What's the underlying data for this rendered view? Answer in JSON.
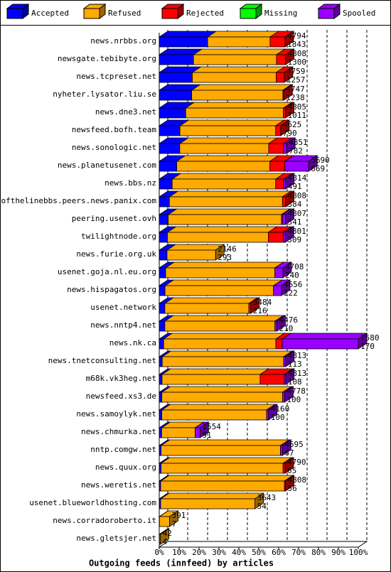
{
  "chart_data": {
    "type": "bar",
    "xlabel": "Outgoing feeds (innfeed) by articles",
    "legend": "top",
    "grid": true,
    "categories": [
      "news.nrbbs.org",
      "newsgate.tebibyte.org",
      "news.tcpreset.net",
      "nyheter.lysator.liu.se",
      "news.dne3.net",
      "newsfeed.bofh.team",
      "news.sonologic.net",
      "news.planetusenet.com",
      "news.bbs.nz",
      "endofthelinebbs.peers.news.panix.com",
      "peering.usenet.ovh",
      "twilightnode.org",
      "news.furie.org.uk",
      "usenet.goja.nl.eu.org",
      "news.hispagatos.org",
      "usenet.network",
      "news.nntp4.net",
      "news.nk.ca",
      "news.tnetconsulting.net",
      "m68k.vk3heg.net",
      "newsfeed.xs3.de",
      "news.samoylyk.net",
      "news.chmurka.net",
      "nntp.comgw.net",
      "news.quux.org",
      "news.weretis.net",
      "usenet.blueworldhosting.com",
      "news.corradoroberto.it",
      "news.gletsjer.net"
    ],
    "series": [
      {
        "name": "Accepted",
        "color": "#0000ff",
        "values": [
          24.3,
          17.2,
          16.6,
          16.3,
          13.3,
          10.4,
          10.3,
          8.8,
          6.5,
          5.1,
          4.5,
          4.1,
          3.9,
          3.2,
          2.9,
          2.8,
          2.8,
          2.2,
          1.5,
          1.4,
          1.3,
          1.3,
          1.2,
          0.9,
          0.9,
          0.7,
          0.7,
          0.1,
          0.1
        ]
      },
      {
        "name": "Refused",
        "color": "#ffaa00",
        "values": [
          31.4,
          41.7,
          42.2,
          45.8,
          49.1,
          48.1,
          44.7,
          46.8,
          52.0,
          56.8,
          56.9,
          50.7,
          24.4,
          54.9,
          54.5,
          42.2,
          55.3,
          56.4,
          61.0,
          49.3,
          60.7,
          52.6,
          16.8,
          60.0,
          61.3,
          62.2,
          47.4,
          5.1,
          0.5
        ]
      },
      {
        "name": "Rejected",
        "color": "#ff0000",
        "values": [
          7.5,
          4.5,
          4,
          0.5,
          1,
          2.5,
          7.5,
          7.5,
          4,
          1.5,
          0.5,
          7.5,
          0,
          0,
          0,
          1,
          0,
          3.2,
          0,
          12.1,
          0,
          0,
          0,
          0,
          1,
          0.5,
          0,
          0,
          0
        ]
      },
      {
        "name": "Missing",
        "color": "#00ff00",
        "values": [
          0,
          0,
          0,
          0,
          0,
          0,
          0,
          0,
          0,
          0,
          0,
          0,
          0,
          0,
          0,
          0,
          0,
          0,
          0,
          0,
          0,
          0,
          0,
          0,
          0,
          0,
          0,
          0,
          0
        ]
      },
      {
        "name": "Spooled",
        "color": "#9900ff",
        "values": [
          0,
          0,
          0,
          0,
          0,
          0,
          1.5,
          12.0,
          1,
          0,
          1.5,
          1,
          0,
          4,
          4,
          0,
          1,
          38.2,
          1,
          0.7,
          1,
          1,
          2.5,
          1,
          0,
          0,
          0,
          0,
          0
        ]
      }
    ],
    "totals": [
      4794,
      4808,
      4759,
      4747,
      4805,
      4625,
      4851,
      5690,
      4814,
      4808,
      4807,
      4801,
      2146,
      4708,
      4656,
      3484,
      4476,
      7580,
      4813,
      4813,
      4778,
      4160,
      1554,
      4695,
      4790,
      4808,
      3643,
      391,
      42
    ],
    "accepted": [
      1843,
      1300,
      1257,
      1238,
      1011,
      790,
      782,
      669,
      491,
      384,
      341,
      309,
      293,
      240,
      222,
      216,
      210,
      170,
      113,
      108,
      100,
      100,
      91,
      67,
      65,
      56,
      54,
      7,
      4
    ],
    "xlim": [
      0,
      100
    ],
    "xticks": [
      {
        "value": 0,
        "label": "0%"
      },
      {
        "value": 10,
        "label": "10%"
      },
      {
        "value": 20,
        "label": "20%"
      },
      {
        "value": 30,
        "label": "30%"
      },
      {
        "value": 40,
        "label": "40%"
      },
      {
        "value": 50,
        "label": "50%"
      },
      {
        "value": 60,
        "label": "60%"
      },
      {
        "value": 70,
        "label": "70%"
      },
      {
        "value": 80,
        "label": "80%"
      },
      {
        "value": 90,
        "label": "90%"
      },
      {
        "value": 100,
        "label": "100%"
      }
    ]
  }
}
